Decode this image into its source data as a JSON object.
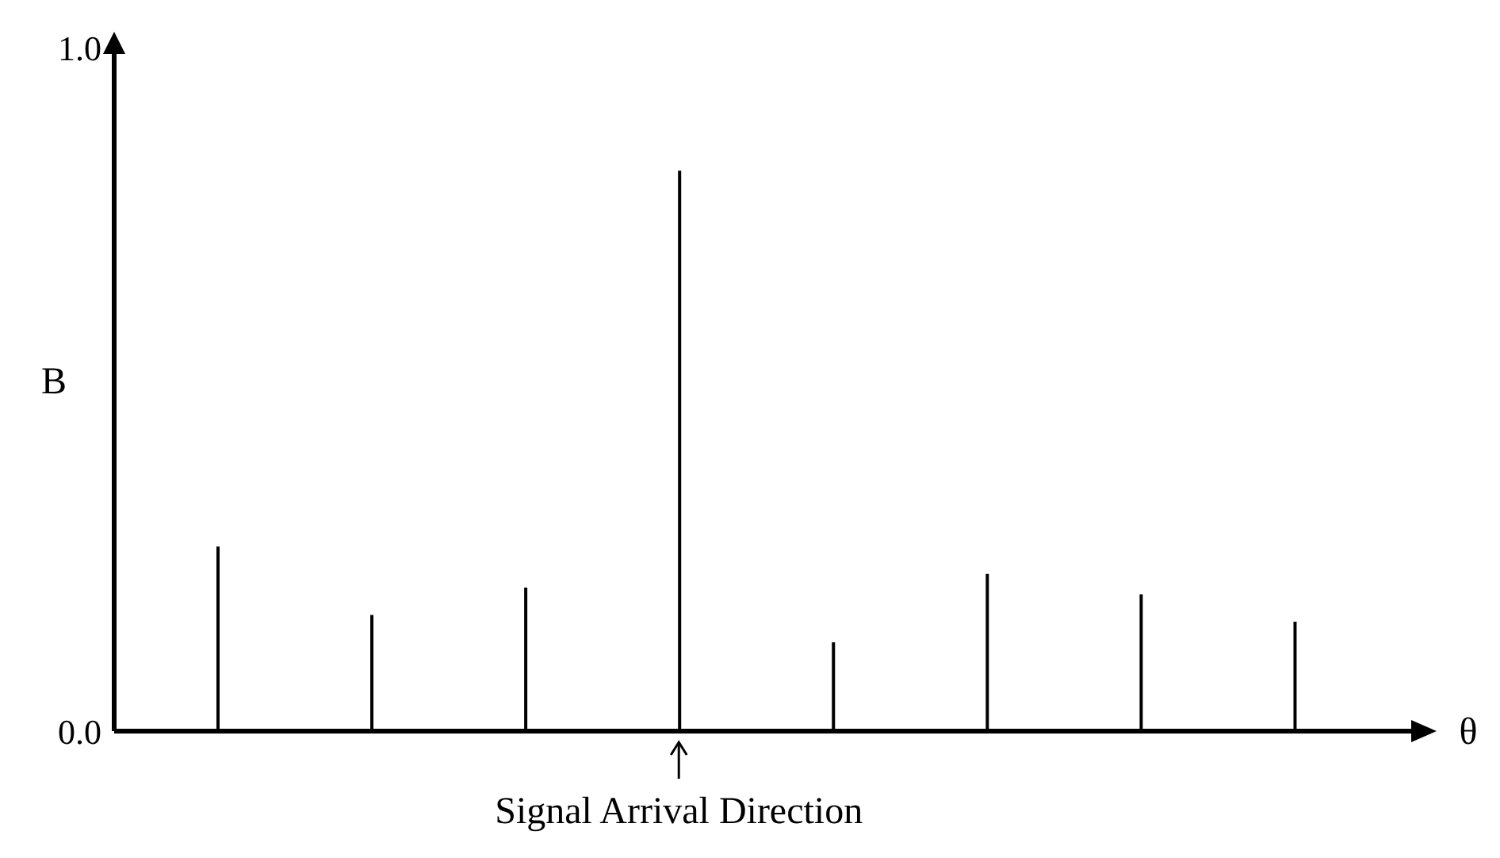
{
  "chart_data": {
    "type": "bar",
    "xlabel": "θ",
    "ylabel": "B",
    "categories": [
      null,
      null,
      null,
      null,
      null,
      null,
      null,
      null
    ],
    "values": [
      0.27,
      0.17,
      0.21,
      0.82,
      0.13,
      0.23,
      0.2,
      0.16
    ],
    "color": "#000000",
    "ylim": [
      0,
      1
    ],
    "yticks": [
      {
        "value": 0,
        "label": "0.0"
      },
      {
        "value": 1,
        "label": "1.0"
      }
    ],
    "annotations": [
      "Signal Arrival Direction"
    ],
    "grid": false,
    "legend": false
  }
}
